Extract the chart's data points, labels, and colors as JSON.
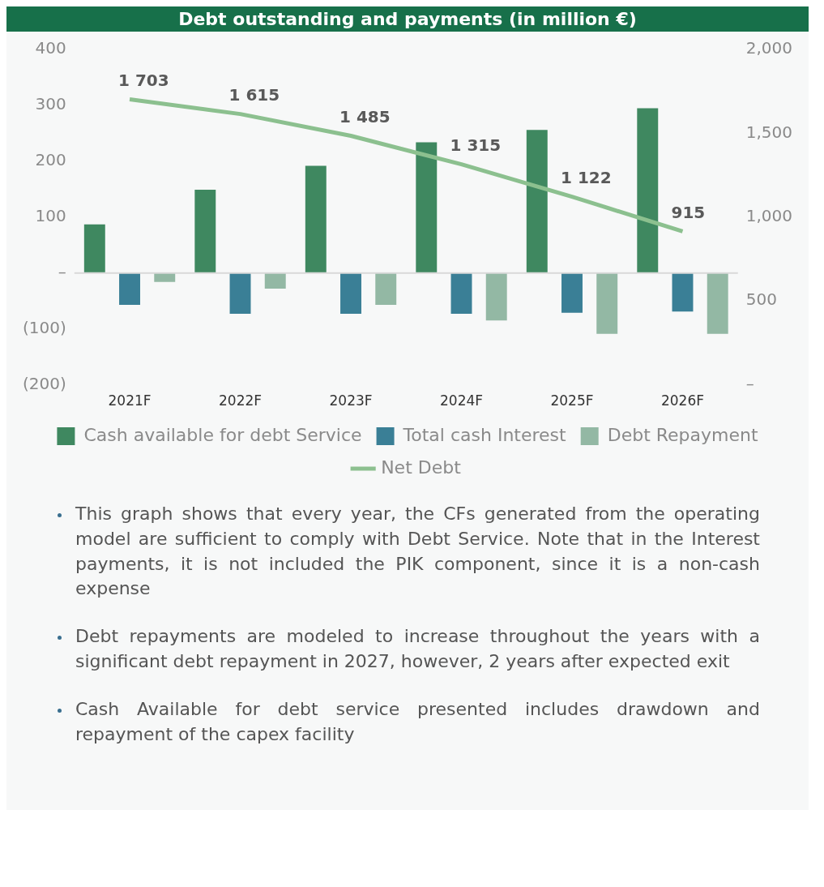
{
  "chart_data": {
    "type": "bar",
    "title": "Debt outstanding and payments (in million €)",
    "categories": [
      "2021F",
      "2022F",
      "2023F",
      "2024F",
      "2025F",
      "2026F"
    ],
    "series": [
      {
        "name": "Cash available for debt Service",
        "color": "#3f8860",
        "values": [
          87,
          149,
          192,
          234,
          256,
          295
        ]
      },
      {
        "name": "Total cash Interest",
        "color": "#3a7f96",
        "values": [
          -57,
          -73,
          -73,
          -73,
          -71,
          -69
        ]
      },
      {
        "name": "Debt Repayment",
        "color": "#93b8a4",
        "values": [
          -16,
          -28,
          -57,
          -85,
          -109,
          -109
        ]
      },
      {
        "name": "Net Debt",
        "type": "line",
        "axis": "y2",
        "color": "#8cc08f",
        "values": [
          1703,
          1615,
          1485,
          1315,
          1122,
          915
        ],
        "value_labels": [
          "1 703",
          "1 615",
          "1 485",
          "1 315",
          "1 122",
          "915"
        ]
      }
    ],
    "ylim": [
      -200,
      400
    ],
    "yticks": [
      {
        "value": -200,
        "label": "(200)"
      },
      {
        "value": -100,
        "label": "(100)"
      },
      {
        "value": 0,
        "label": "–"
      },
      100,
      200,
      300,
      400
    ],
    "y2lim": [
      0,
      2000
    ],
    "y2ticks": [
      {
        "value": 0,
        "label": "–"
      },
      500,
      {
        "value": 1000,
        "label": "1,000"
      },
      {
        "value": 1500,
        "label": "1,500"
      },
      {
        "value": 2000,
        "label": "2,000"
      }
    ],
    "grid": false,
    "legend": "bottom",
    "marker": "none",
    "ref_lines": [
      {
        "axis": "y",
        "value": 0,
        "color": "#d9d9d9"
      }
    ],
    "annotations": [
      "This graph shows that every year, the CFs generated from the operating model are sufficient to comply with Debt Service. Note that in the Interest payments, it is not included the PIK component, since it is a non-cash expense",
      "Debt repayments are modeled to increase throughout the years with a significant debt repayment in 2027, however, 2 years after expected exit",
      "Cash Available for debt service presented includes drawdown and repayment of the capex facility"
    ]
  }
}
